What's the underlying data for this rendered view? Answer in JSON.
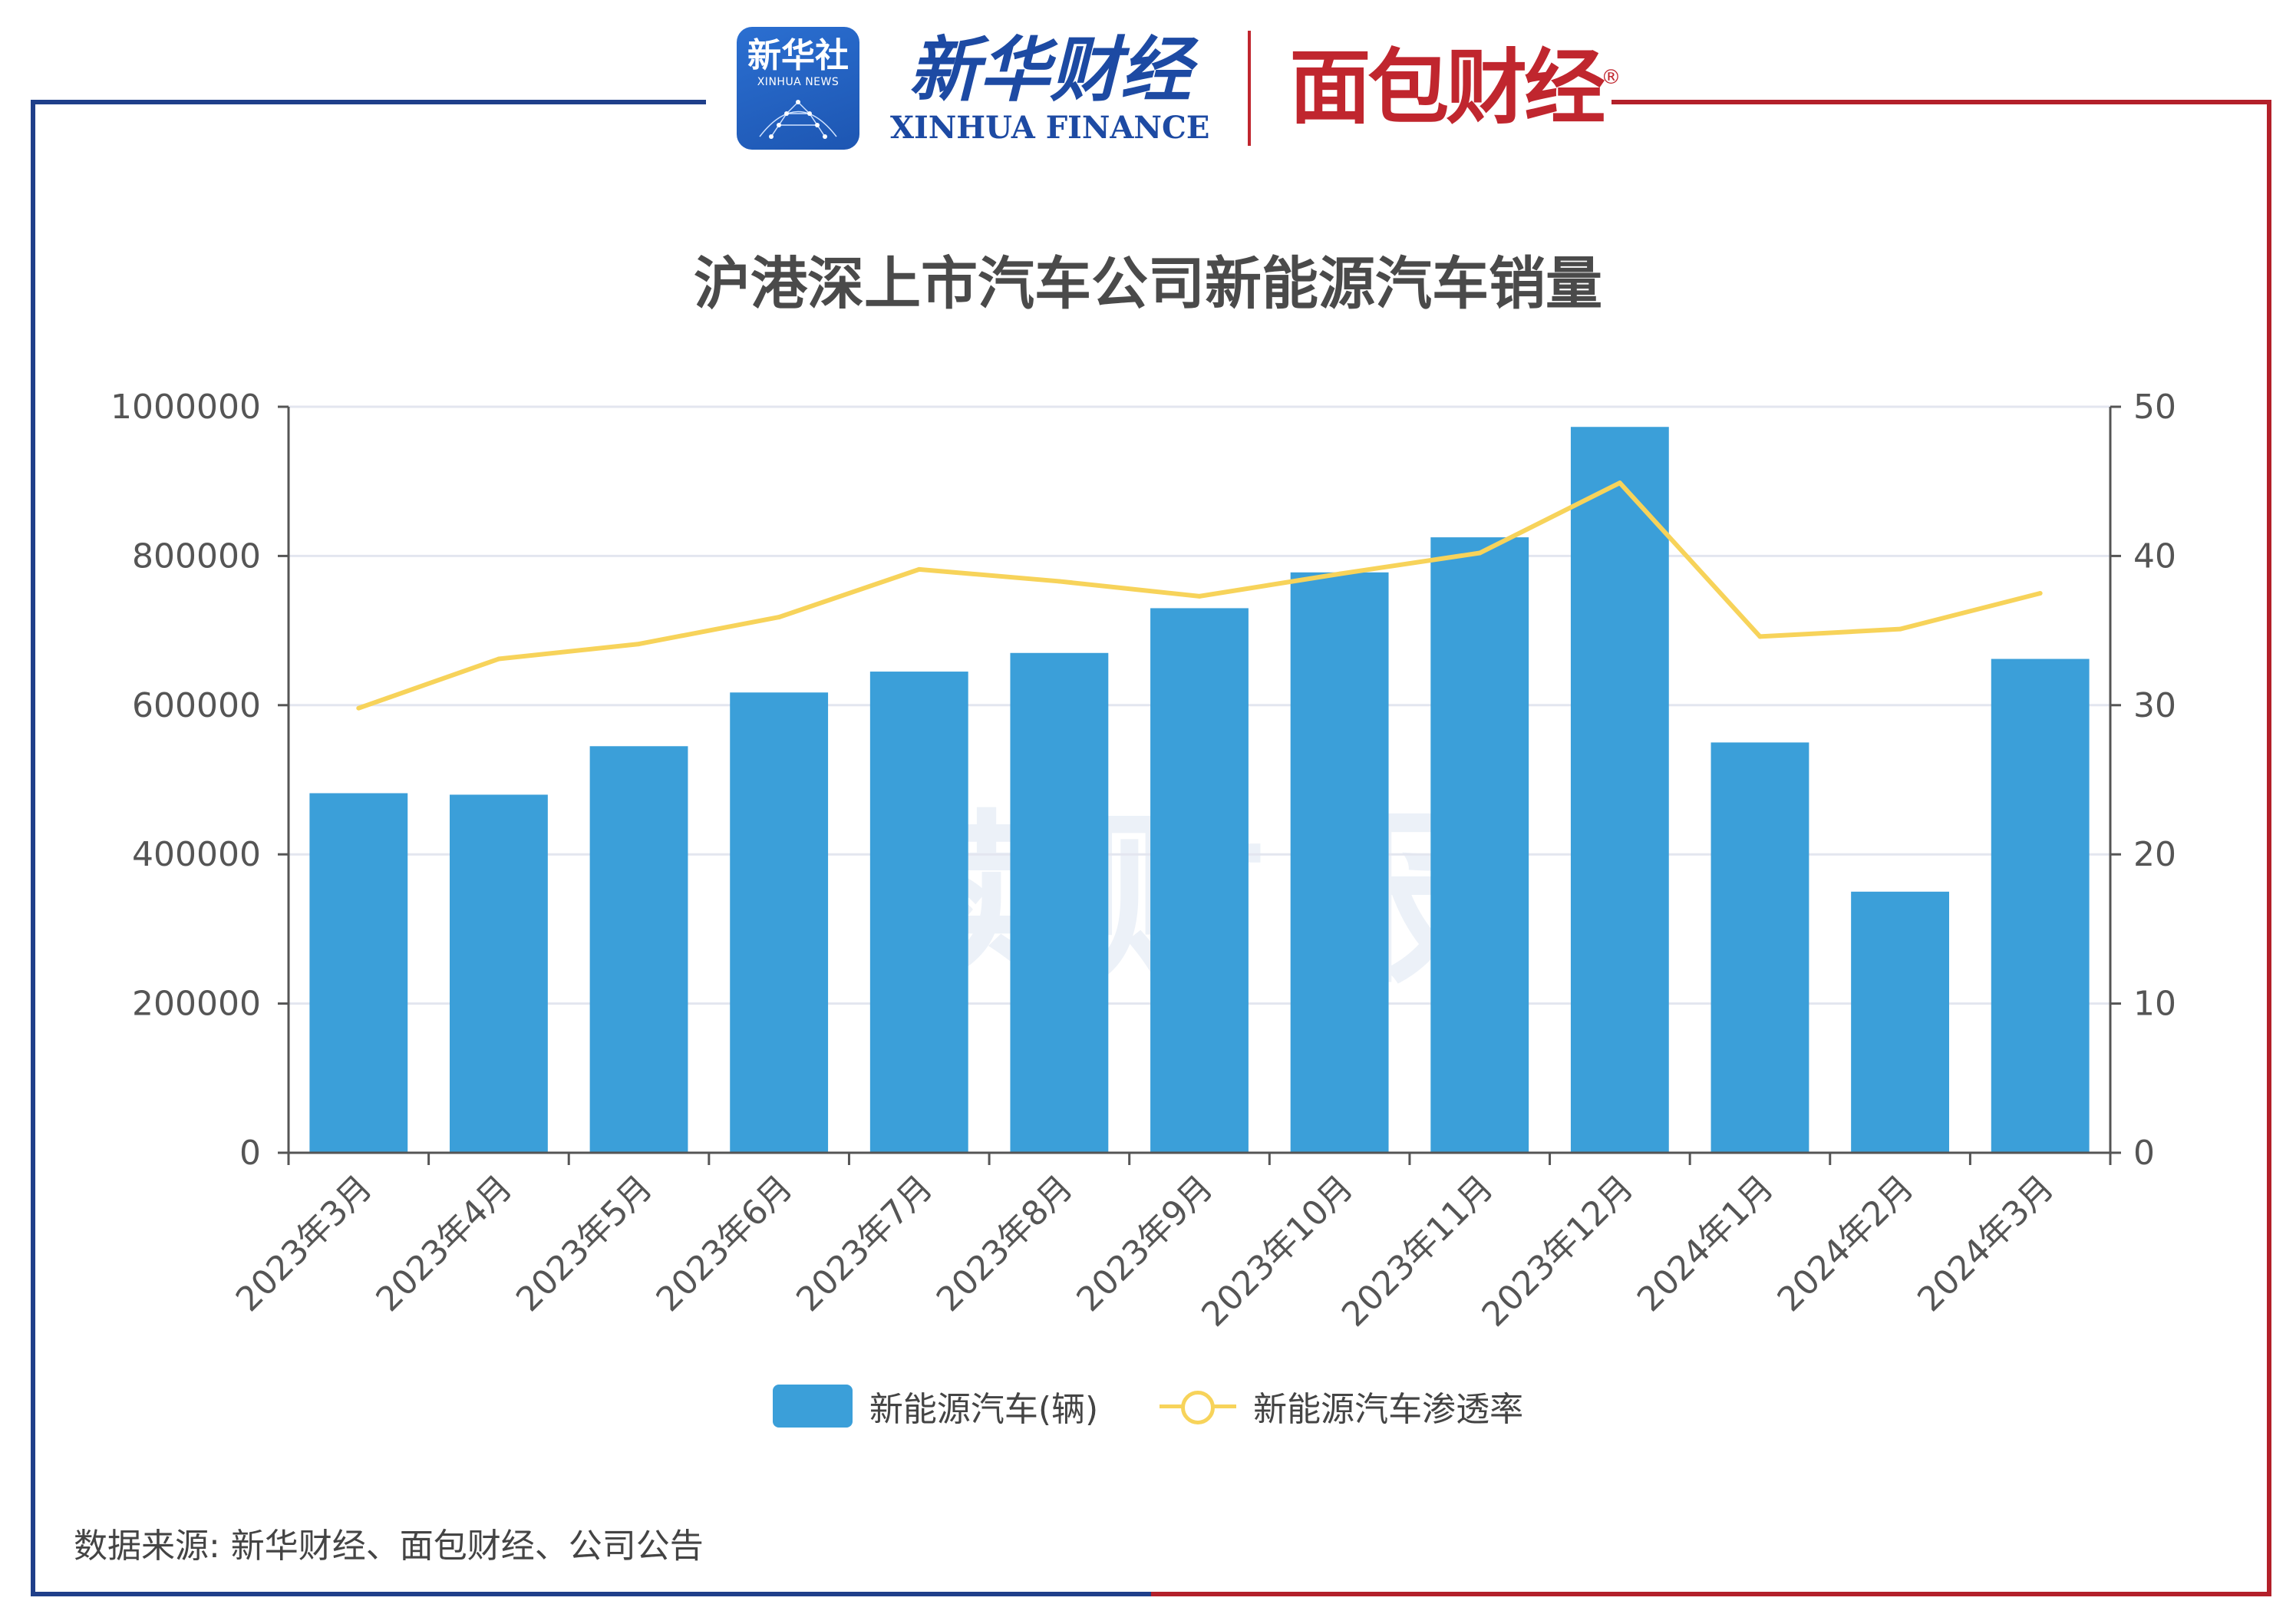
{
  "brand": {
    "xinhua_badge_cn": "新华社",
    "xinhua_badge_en": "XINHUA NEWS",
    "xinhua_finance_cn": "新华财经",
    "xinhua_finance_en": "XINHUA FINANCE",
    "mianbao_cn": "面包财经",
    "registered_mark": "®"
  },
  "colors": {
    "bar": "#3b9fd9",
    "line": "#f7d35a",
    "frame_blue": "#1f3f8a",
    "frame_red": "#b3202a"
  },
  "watermark": "读财报",
  "chart_data": {
    "type": "bar",
    "title": "沪港深上市汽车公司新能源汽车销量",
    "categories": [
      "2023年3月",
      "2023年4月",
      "2023年5月",
      "2023年6月",
      "2023年7月",
      "2023年8月",
      "2023年9月",
      "2023年10月",
      "2023年11月",
      "2023年12月",
      "2024年1月",
      "2024年2月",
      "2024年3月"
    ],
    "series": [
      {
        "name": "新能源汽车(辆)",
        "type": "bar",
        "axis": "left",
        "values": [
          482000,
          480000,
          545000,
          617000,
          645000,
          670000,
          730000,
          778000,
          825000,
          973000,
          550000,
          350000,
          662000
        ]
      },
      {
        "name": "新能源汽车渗透率",
        "type": "line",
        "axis": "right",
        "values": [
          29.8,
          33.1,
          34.1,
          35.9,
          39.1,
          38.3,
          37.3,
          38.8,
          40.2,
          44.9,
          34.6,
          35.1,
          37.5
        ]
      }
    ],
    "y_left": {
      "min": 0,
      "max": 1000000,
      "ticks": [
        "0",
        "200000",
        "400000",
        "600000",
        "800000",
        "1000000"
      ]
    },
    "y_right": {
      "min": 0,
      "max": 50,
      "ticks": [
        "0",
        "10",
        "20",
        "30",
        "40",
        "50"
      ]
    },
    "grid": true,
    "legend_position": "bottom"
  },
  "source": "数据来源: 新华财经、面包财经、公司公告"
}
